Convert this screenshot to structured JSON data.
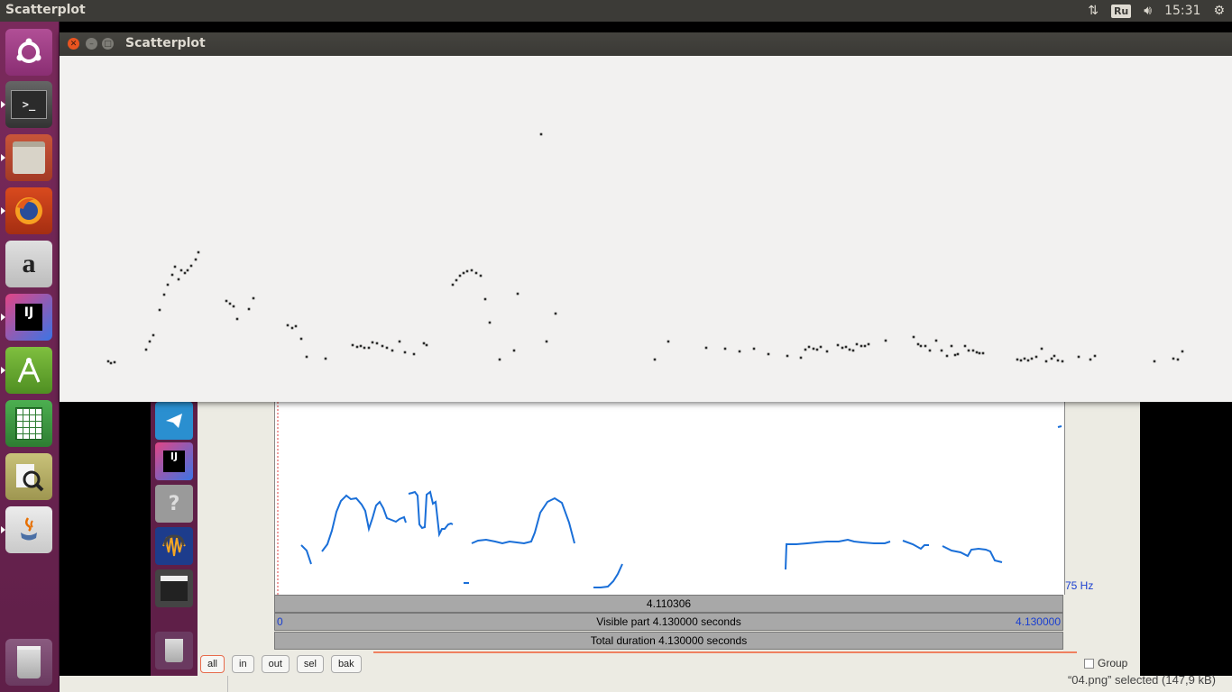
{
  "top_panel": {
    "app_title": "Scatterplot",
    "keyboard_layout": "Ru",
    "clock": "15:31"
  },
  "launcher": {
    "items": [
      {
        "name": "ubuntu-dash",
        "label": ""
      },
      {
        "name": "terminal",
        "label": ">_"
      },
      {
        "name": "files",
        "label": ""
      },
      {
        "name": "firefox",
        "label": ""
      },
      {
        "name": "amazon",
        "label": "a"
      },
      {
        "name": "intellij",
        "label": "IJ"
      },
      {
        "name": "android-studio",
        "label": ""
      },
      {
        "name": "libreoffice-calc",
        "label": ""
      },
      {
        "name": "document-viewer",
        "label": ""
      },
      {
        "name": "java",
        "label": ""
      },
      {
        "name": "trash",
        "label": ""
      }
    ]
  },
  "scatter_window": {
    "title": "Scatterplot"
  },
  "chart_data": {
    "type": "scatter",
    "title": "",
    "xlabel": "",
    "ylabel": "",
    "xlim": [
      0,
      1300
    ],
    "ylim": [
      0,
      384
    ],
    "grid": false,
    "points": [
      [
        54,
        45
      ],
      [
        57,
        43
      ],
      [
        61,
        44
      ],
      [
        96,
        58
      ],
      [
        100,
        67
      ],
      [
        104,
        74
      ],
      [
        111,
        102
      ],
      [
        116,
        119
      ],
      [
        120,
        130
      ],
      [
        125,
        141
      ],
      [
        128,
        150
      ],
      [
        132,
        136
      ],
      [
        135,
        146
      ],
      [
        139,
        143
      ],
      [
        142,
        146
      ],
      [
        146,
        151
      ],
      [
        151,
        158
      ],
      [
        154,
        166
      ],
      [
        185,
        112
      ],
      [
        189,
        109
      ],
      [
        193,
        106
      ],
      [
        197,
        92
      ],
      [
        210,
        103
      ],
      [
        215,
        115
      ],
      [
        253,
        85
      ],
      [
        258,
        82
      ],
      [
        262,
        84
      ],
      [
        268,
        70
      ],
      [
        274,
        50
      ],
      [
        295,
        48
      ],
      [
        325,
        63
      ],
      [
        330,
        61
      ],
      [
        334,
        62
      ],
      [
        338,
        60
      ],
      [
        343,
        60
      ],
      [
        347,
        66
      ],
      [
        352,
        65
      ],
      [
        358,
        62
      ],
      [
        363,
        60
      ],
      [
        369,
        57
      ],
      [
        377,
        67
      ],
      [
        383,
        55
      ],
      [
        393,
        53
      ],
      [
        404,
        65
      ],
      [
        407,
        63
      ],
      [
        436,
        130
      ],
      [
        440,
        135
      ],
      [
        444,
        140
      ],
      [
        448,
        143
      ],
      [
        452,
        145
      ],
      [
        457,
        146
      ],
      [
        462,
        143
      ],
      [
        467,
        140
      ],
      [
        472,
        114
      ],
      [
        477,
        88
      ],
      [
        488,
        47
      ],
      [
        504,
        57
      ],
      [
        508,
        120
      ],
      [
        534,
        297
      ],
      [
        540,
        67
      ],
      [
        550,
        98
      ],
      [
        660,
        47
      ],
      [
        675,
        67
      ],
      [
        717,
        60
      ],
      [
        738,
        59
      ],
      [
        754,
        56
      ],
      [
        770,
        59
      ],
      [
        786,
        53
      ],
      [
        807,
        51
      ],
      [
        822,
        49
      ],
      [
        827,
        58
      ],
      [
        831,
        61
      ],
      [
        836,
        59
      ],
      [
        840,
        58
      ],
      [
        844,
        61
      ],
      [
        851,
        56
      ],
      [
        863,
        63
      ],
      [
        868,
        60
      ],
      [
        872,
        61
      ],
      [
        876,
        58
      ],
      [
        880,
        57
      ],
      [
        884,
        64
      ],
      [
        889,
        62
      ],
      [
        893,
        62
      ],
      [
        897,
        64
      ],
      [
        916,
        68
      ],
      [
        947,
        72
      ],
      [
        952,
        64
      ],
      [
        955,
        62
      ],
      [
        960,
        62
      ],
      [
        965,
        57
      ],
      [
        972,
        68
      ],
      [
        978,
        57
      ],
      [
        984,
        51
      ],
      [
        989,
        62
      ],
      [
        993,
        52
      ],
      [
        996,
        53
      ],
      [
        1004,
        62
      ],
      [
        1008,
        57
      ],
      [
        1013,
        57
      ],
      [
        1017,
        55
      ],
      [
        1020,
        54
      ],
      [
        1024,
        54
      ],
      [
        1062,
        47
      ],
      [
        1066,
        46
      ],
      [
        1070,
        48
      ],
      [
        1074,
        46
      ],
      [
        1078,
        48
      ],
      [
        1083,
        50
      ],
      [
        1089,
        59
      ],
      [
        1094,
        45
      ],
      [
        1100,
        48
      ],
      [
        1103,
        51
      ],
      [
        1107,
        46
      ],
      [
        1112,
        45
      ],
      [
        1130,
        50
      ],
      [
        1143,
        47
      ],
      [
        1148,
        51
      ],
      [
        1214,
        45
      ],
      [
        1235,
        48
      ],
      [
        1240,
        47
      ],
      [
        1245,
        56
      ]
    ]
  },
  "praat": {
    "hz_label": "75 Hz",
    "cursor_time": "4.110306",
    "visible_left": "0",
    "visible_text": "Visible part 4.130000 seconds",
    "visible_right": "4.130000",
    "total_text": "Total duration 4.130000 seconds",
    "buttons": [
      "all",
      "in",
      "out",
      "sel",
      "bak"
    ],
    "group_label": "Group",
    "pitch_color": "#1a6fd8"
  },
  "inner_launcher": {
    "items": [
      "telegram",
      "intellij",
      "help",
      "audacity",
      "video-editor",
      "trash"
    ]
  },
  "status_bar": {
    "text": "“04.png” selected  (147,9 kB)"
  }
}
